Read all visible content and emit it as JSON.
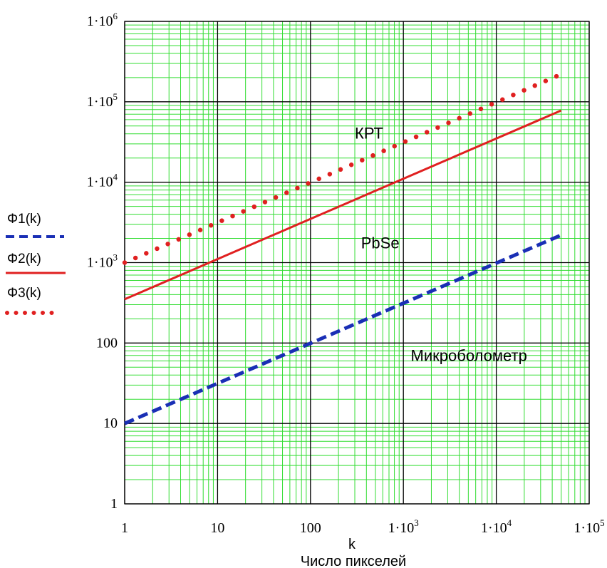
{
  "chart_data": {
    "type": "line",
    "x_scale": "log",
    "y_scale": "log",
    "xlim": [
      1,
      100000
    ],
    "ylim": [
      1,
      1000000
    ],
    "grid": true,
    "colors": {
      "major_grid": "#000000",
      "minor_grid": "#33dd33",
      "phi1": "#1a2fb5",
      "phi2": "#e02020",
      "phi3": "#e02020"
    },
    "x_ticks": [
      {
        "value": 1,
        "mantissa": "1",
        "exp": ""
      },
      {
        "value": 10,
        "mantissa": "10",
        "exp": ""
      },
      {
        "value": 100,
        "mantissa": "100",
        "exp": ""
      },
      {
        "value": 1000,
        "mantissa": "1·10",
        "exp": "3"
      },
      {
        "value": 10000,
        "mantissa": "1·10",
        "exp": "4"
      },
      {
        "value": 100000,
        "mantissa": "1·10",
        "exp": "5"
      }
    ],
    "y_ticks": [
      {
        "value": 1,
        "mantissa": "1",
        "exp": ""
      },
      {
        "value": 10,
        "mantissa": "10",
        "exp": ""
      },
      {
        "value": 100,
        "mantissa": "100",
        "exp": ""
      },
      {
        "value": 1000,
        "mantissa": "1·10",
        "exp": "3"
      },
      {
        "value": 10000,
        "mantissa": "1·10",
        "exp": "4"
      },
      {
        "value": 100000,
        "mantissa": "1·10",
        "exp": "5"
      },
      {
        "value": 1000000,
        "mantissa": "1·10",
        "exp": "6"
      }
    ],
    "xlabel": "k",
    "xlabel2": "Число пикселей",
    "series": [
      {
        "name": "Φ1(k)",
        "style": "dashed",
        "color": "#1a2fb5",
        "x": [
          1,
          50000
        ],
        "y": [
          10,
          2200
        ]
      },
      {
        "name": "Φ2(k)",
        "style": "solid",
        "color": "#e02020",
        "x": [
          1,
          50000
        ],
        "y": [
          350,
          78000
        ]
      },
      {
        "name": "Φ3(k)",
        "style": "dotted",
        "color": "#e02020",
        "x": [
          1,
          50000
        ],
        "y": [
          1000,
          220000
        ]
      }
    ],
    "annotations": [
      {
        "text": "КРТ",
        "x": 300,
        "y": 35000
      },
      {
        "text": "PbSe",
        "x": 350,
        "y": 1500
      },
      {
        "text": "Микроболометр",
        "x": 1200,
        "y": 60
      }
    ]
  }
}
